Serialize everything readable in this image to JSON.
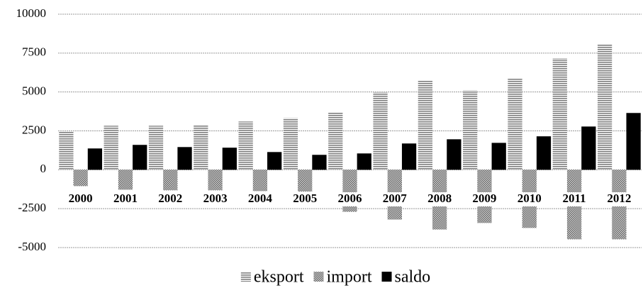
{
  "chart_data": {
    "type": "bar",
    "categories": [
      "2000",
      "2001",
      "2002",
      "2003",
      "2004",
      "2005",
      "2006",
      "2007",
      "2008",
      "2009",
      "2010",
      "2011",
      "2012"
    ],
    "series": [
      {
        "name": "eksport",
        "color": "#7f7f7f",
        "values": [
          2470,
          2830,
          2830,
          2850,
          3100,
          3330,
          3700,
          4980,
          5750,
          5110,
          5850,
          7170,
          8080
        ]
      },
      {
        "name": "import",
        "color": "#8c8c8c",
        "values": [
          -1050,
          -1280,
          -1320,
          -1320,
          -1370,
          -1400,
          -2700,
          -3200,
          -3840,
          -3420,
          -3740,
          -4470,
          -4470
        ]
      },
      {
        "name": "saldo",
        "color": "#000000",
        "values": [
          1370,
          1600,
          1460,
          1420,
          1140,
          960,
          1050,
          1690,
          1960,
          1730,
          2150,
          2780,
          3650
        ]
      }
    ],
    "ylim": [
      -5000,
      10000
    ],
    "yticks": [
      -5000,
      -2500,
      0,
      2500,
      5000,
      7500,
      10000
    ],
    "grid": true,
    "legend": "bottom"
  }
}
